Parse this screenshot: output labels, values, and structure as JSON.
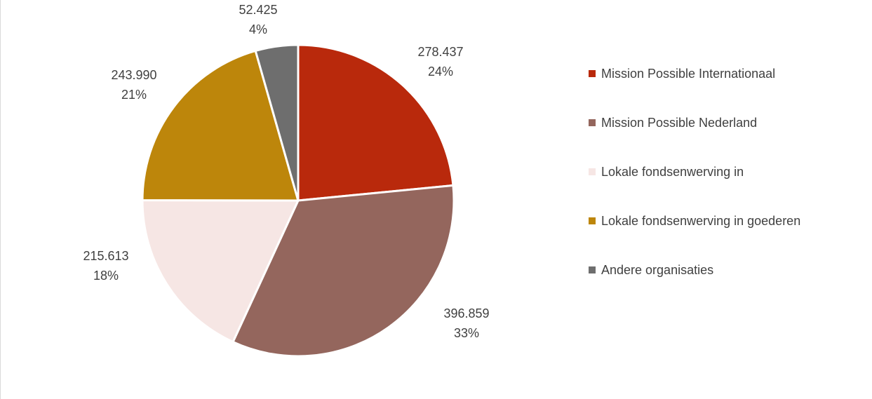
{
  "chart_data": {
    "type": "pie",
    "slices": [
      {
        "name": "Mission Possible Internationaal",
        "value": 278437,
        "value_label": "278.437",
        "percent_label": "24%",
        "color": "#b9290c"
      },
      {
        "name": "Mission Possible Nederland",
        "value": 396859,
        "value_label": "396.859",
        "percent_label": "33%",
        "color": "#94665d"
      },
      {
        "name": "Lokale fondsenwerving in",
        "value": 215613,
        "value_label": "215.613",
        "percent_label": "18%",
        "color": "#f6e6e4"
      },
      {
        "name": "Lokale fondsenwerving in goederen",
        "value": 243990,
        "value_label": "243.990",
        "percent_label": "21%",
        "color": "#bd860b"
      },
      {
        "name": "Andere organisaties",
        "value": 52425,
        "value_label": "52.425",
        "percent_label": "4%",
        "color": "#6e6e6e"
      }
    ],
    "legend_position": "right"
  }
}
